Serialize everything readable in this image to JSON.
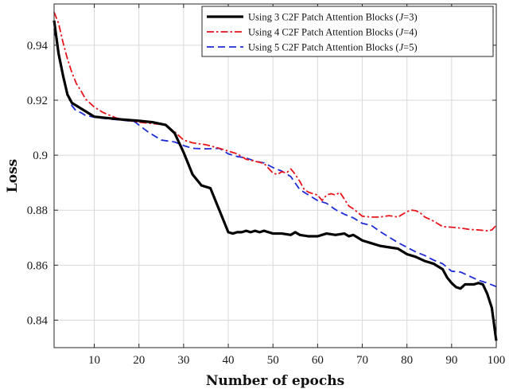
{
  "chart_data": {
    "type": "line",
    "title": "",
    "xlabel": "Number of epochs",
    "ylabel": "Loss",
    "xlim": [
      1,
      100
    ],
    "ylim": [
      0.83,
      0.955
    ],
    "xticks": [
      10,
      20,
      30,
      40,
      50,
      60,
      70,
      80,
      90,
      100
    ],
    "yticks": [
      0.84,
      0.86,
      0.88,
      0.9,
      0.92,
      0.94
    ],
    "ytick_labels": [
      "0.84",
      "0.86",
      "0.88",
      "0.9",
      "0.92",
      "0.94"
    ],
    "grid": true,
    "legend_position": "top-right",
    "series": [
      {
        "name": "Using 3 C2F Patch Attention Blocks (J=3)",
        "legend_prefix": "Using 3 C2F Patch Attention Blocks (",
        "legend_math": "J",
        "legend_suffix": "=3)",
        "color": "#000000",
        "style": "solid",
        "x": [
          1,
          2,
          3,
          4,
          5,
          6,
          8,
          10,
          13,
          16,
          20,
          23,
          26,
          28,
          30,
          32,
          34,
          36,
          38,
          40,
          41,
          42,
          43,
          44,
          45,
          46,
          47,
          48,
          50,
          52,
          54,
          55,
          56,
          58,
          60,
          62,
          64,
          66,
          67,
          68,
          70,
          72,
          74,
          76,
          78,
          80,
          82,
          84,
          86,
          88,
          89,
          90,
          91,
          92,
          93,
          94,
          95,
          96,
          97,
          98,
          99,
          100
        ],
        "values": [
          0.949,
          0.937,
          0.929,
          0.922,
          0.919,
          0.918,
          0.916,
          0.914,
          0.9135,
          0.913,
          0.9125,
          0.912,
          0.911,
          0.908,
          0.901,
          0.893,
          0.889,
          0.888,
          0.88,
          0.872,
          0.8715,
          0.872,
          0.872,
          0.8725,
          0.872,
          0.8725,
          0.872,
          0.8725,
          0.8715,
          0.8715,
          0.871,
          0.872,
          0.871,
          0.8705,
          0.8705,
          0.8715,
          0.871,
          0.8715,
          0.8705,
          0.871,
          0.869,
          0.868,
          0.867,
          0.8665,
          0.866,
          0.864,
          0.863,
          0.8615,
          0.8605,
          0.8585,
          0.8555,
          0.8535,
          0.852,
          0.8515,
          0.853,
          0.853,
          0.853,
          0.8535,
          0.853,
          0.8495,
          0.8445,
          0.8325
        ]
      },
      {
        "name": "Using 4 C2F Patch Attention Blocks (J=4)",
        "legend_prefix": "Using 4 C2F Patch Attention Blocks (",
        "legend_math": "J",
        "legend_suffix": "=4)",
        "color": "#e8141b",
        "style": "dashdot",
        "x": [
          1,
          2,
          3,
          4,
          5,
          6,
          7,
          8,
          10,
          12,
          15,
          18,
          20,
          23,
          26,
          28,
          30,
          32,
          35,
          38,
          40,
          42,
          44,
          46,
          48,
          50,
          51,
          52,
          53,
          54,
          55,
          56,
          57,
          58,
          60,
          61,
          62,
          63,
          64,
          65,
          66,
          67,
          68,
          70,
          72,
          74,
          76,
          78,
          80,
          81,
          82,
          83,
          84,
          86,
          88,
          90,
          92,
          94,
          96,
          98,
          99,
          100
        ],
        "values": [
          0.952,
          0.948,
          0.941,
          0.935,
          0.93,
          0.926,
          0.9235,
          0.9205,
          0.9175,
          0.9155,
          0.9135,
          0.9125,
          0.912,
          0.9115,
          0.911,
          0.9085,
          0.9055,
          0.9045,
          0.9038,
          0.9025,
          0.9015,
          0.9005,
          0.8985,
          0.8978,
          0.897,
          0.8935,
          0.893,
          0.894,
          0.8935,
          0.895,
          0.893,
          0.8905,
          0.8875,
          0.8865,
          0.8855,
          0.8835,
          0.8855,
          0.886,
          0.8855,
          0.8865,
          0.884,
          0.8815,
          0.8805,
          0.8778,
          0.8775,
          0.8775,
          0.878,
          0.8775,
          0.8795,
          0.88,
          0.8798,
          0.879,
          0.8775,
          0.876,
          0.874,
          0.8738,
          0.8735,
          0.873,
          0.8728,
          0.8725,
          0.8728,
          0.8745
        ]
      },
      {
        "name": "Using 5 C2F Patch Attention Blocks (J=5)",
        "legend_prefix": "Using 5 C2F Patch Attention Blocks (",
        "legend_math": "J",
        "legend_suffix": "=5)",
        "color": "#1e2bd6",
        "style": "dashed",
        "x": [
          1,
          2,
          3,
          4,
          5,
          6,
          7,
          8,
          10,
          13,
          16,
          19,
          22,
          25,
          28,
          30,
          32,
          35,
          38,
          40,
          42,
          44,
          46,
          48,
          50,
          52,
          54,
          56,
          58,
          60,
          62,
          64,
          66,
          68,
          70,
          72,
          74,
          76,
          78,
          80,
          82,
          84,
          86,
          88,
          90,
          92,
          94,
          96,
          98,
          100
        ],
        "values": [
          0.946,
          0.937,
          0.929,
          0.922,
          0.918,
          0.916,
          0.9155,
          0.9145,
          0.9138,
          0.9132,
          0.9128,
          0.9122,
          0.9085,
          0.9055,
          0.9048,
          0.9035,
          0.9025,
          0.9023,
          0.9025,
          0.9005,
          0.8995,
          0.899,
          0.8978,
          0.8972,
          0.8955,
          0.8942,
          0.8922,
          0.8875,
          0.8855,
          0.8835,
          0.8825,
          0.8802,
          0.8785,
          0.8772,
          0.8752,
          0.8745,
          0.8722,
          0.8702,
          0.8682,
          0.8665,
          0.8648,
          0.8635,
          0.8618,
          0.8605,
          0.8578,
          0.8575,
          0.856,
          0.8545,
          0.8535,
          0.8522
        ]
      }
    ]
  }
}
